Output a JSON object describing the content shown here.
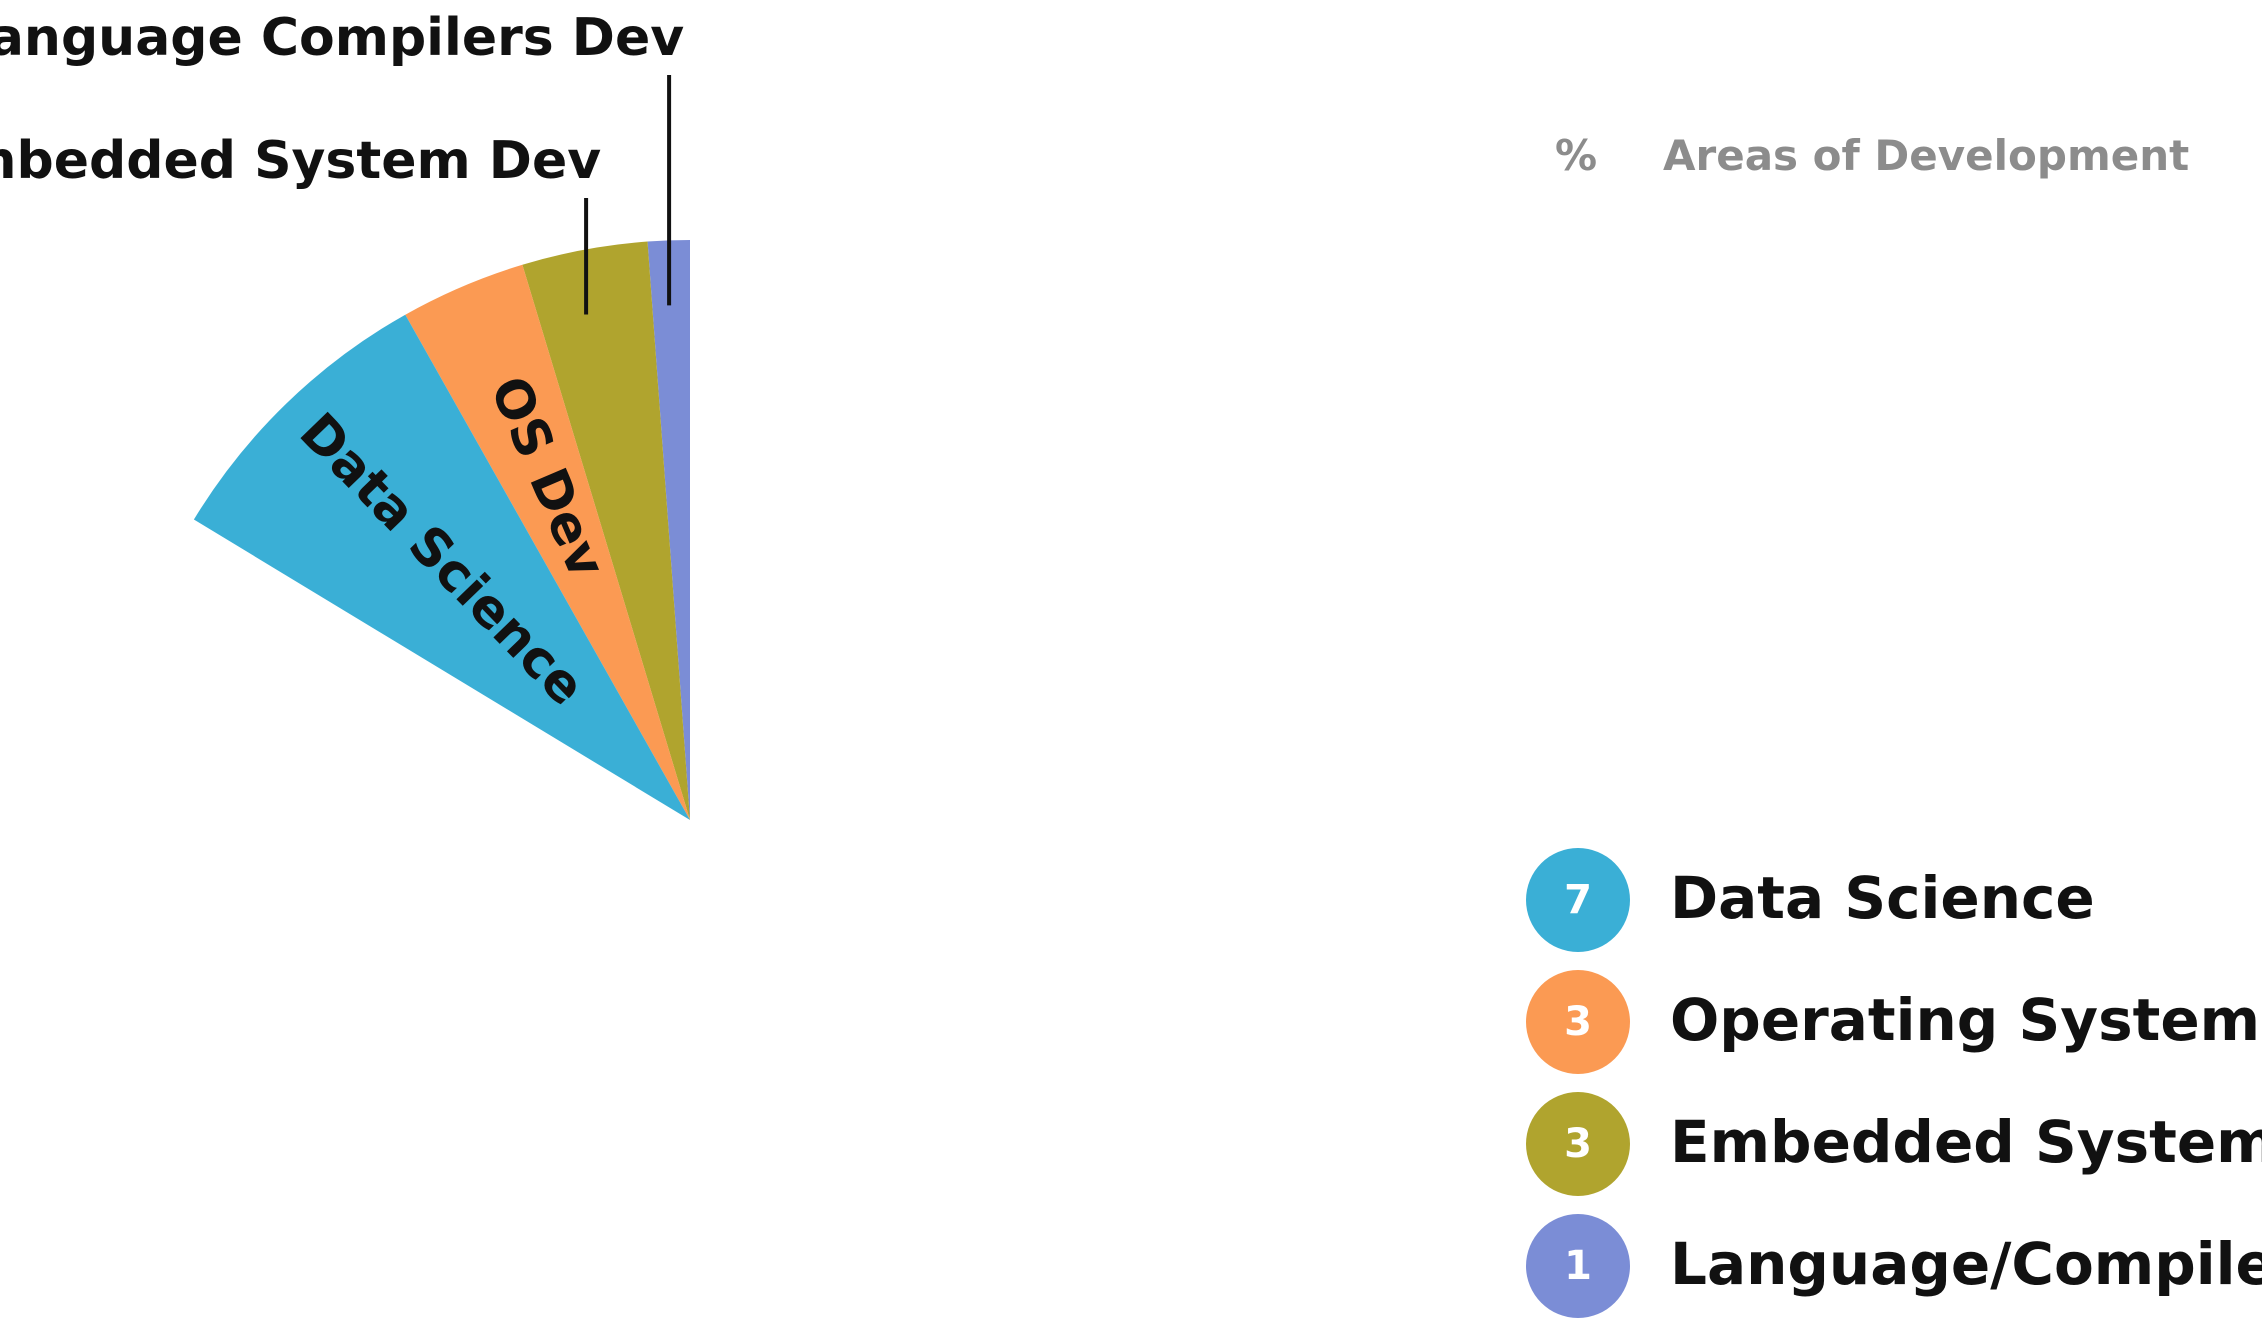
{
  "chart_data": {
    "type": "pie",
    "header": {
      "unit": "%",
      "title": "Areas of Development"
    },
    "slices": [
      {
        "name": "Data Science",
        "value": 7,
        "color": "#3aafd6",
        "slice_label": "Data Science"
      },
      {
        "name": "Operating System",
        "value": 3,
        "color": "#fb9a53",
        "slice_label": "OS Dev"
      },
      {
        "name": "Embedded Systems",
        "value": 3,
        "color": "#b0a42e",
        "slice_label": ""
      },
      {
        "name": "Language/Compilers",
        "value": 1,
        "color": "#7b8dd6",
        "slice_label": ""
      }
    ],
    "callouts": [
      {
        "text": "Embedded System Dev",
        "slice": "Embedded Systems"
      },
      {
        "text": "Language Compilers Dev",
        "slice": "Language/Compilers"
      }
    ],
    "legend": [
      {
        "count": "7",
        "label": "Data Science",
        "color": "#3aafd6"
      },
      {
        "count": "3",
        "label": "Operating System",
        "color": "#fb9a53"
      },
      {
        "count": "3",
        "label": "Embedded Systems",
        "color": "#b0a42e"
      },
      {
        "count": "1",
        "label": "Language/Compilers",
        "color": "#7b8dd6"
      }
    ],
    "legend_position": "bottom-right"
  }
}
